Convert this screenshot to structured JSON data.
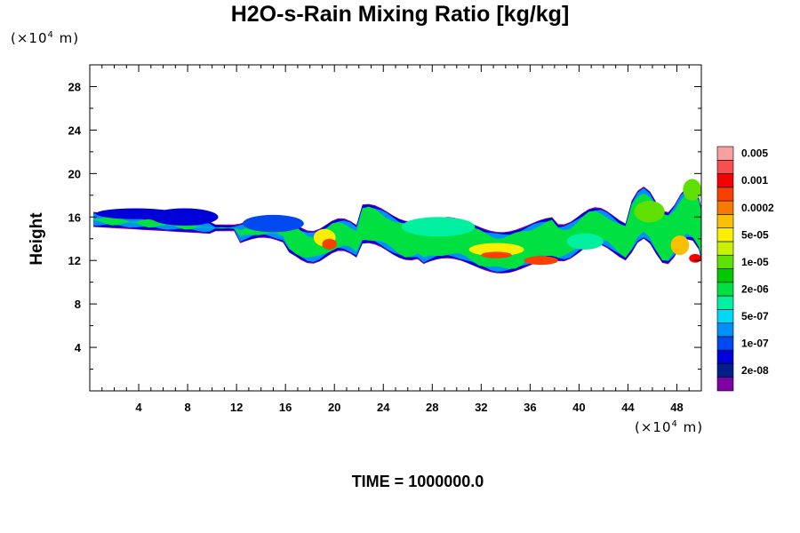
{
  "chart_data": {
    "type": "heatmap",
    "title": "H2O-s-Rain Mixing Ratio [kg/kg]",
    "xlabel": "",
    "ylabel": "Height",
    "x_units_prefix": "(×10",
    "x_units_exp": "4",
    "x_units_suffix": " m)",
    "y_units_prefix": "(×10",
    "y_units_exp": "4",
    "y_units_suffix": " m)",
    "xlim": [
      0,
      50
    ],
    "ylim": [
      0,
      30
    ],
    "x_ticks": [
      4,
      8,
      12,
      16,
      20,
      24,
      28,
      32,
      36,
      40,
      44,
      48
    ],
    "x_tick_labels": [
      "4",
      "8",
      "12",
      "16",
      "20",
      "24",
      "28",
      "32",
      "36",
      "40",
      "44",
      "48"
    ],
    "y_ticks": [
      4,
      8,
      12,
      16,
      20,
      24,
      28
    ],
    "y_tick_labels": [
      "4",
      "8",
      "12",
      "16",
      "20",
      "24",
      "28"
    ],
    "colorbar": {
      "colors": [
        "#7f00a0",
        "#001e8c",
        "#0000d8",
        "#0048f0",
        "#0090f8",
        "#00d8f8",
        "#00f0a0",
        "#00e040",
        "#00c800",
        "#60e000",
        "#c8f000",
        "#f8f000",
        "#f8c000",
        "#f87800",
        "#f84000",
        "#f80000",
        "#f85050",
        "#f8a0a0"
      ],
      "labels": [
        "2e-08",
        "1e-07",
        "5e-07",
        "2e-06",
        "1e-05",
        "5e-05",
        "0.0002",
        "0.001",
        "0.005"
      ]
    },
    "field_regions": [
      {
        "x": 0.5,
        "y": 15.8,
        "w": 6.5,
        "h": 1.0,
        "level": 2
      },
      {
        "x": 5.0,
        "y": 15.2,
        "w": 5.5,
        "h": 1.6,
        "level": 2
      },
      {
        "x": 12.5,
        "y": 14.6,
        "w": 5.0,
        "h": 1.6,
        "level": 3
      },
      {
        "x": 18.3,
        "y": 13.3,
        "w": 1.8,
        "h": 1.6,
        "level": 11
      },
      {
        "x": 19.0,
        "y": 13.0,
        "w": 1.2,
        "h": 1.0,
        "level": 14
      },
      {
        "x": 25.5,
        "y": 14.2,
        "w": 6.0,
        "h": 1.8,
        "level": 6
      },
      {
        "x": 31.0,
        "y": 12.4,
        "w": 4.5,
        "h": 1.2,
        "level": 11
      },
      {
        "x": 32.0,
        "y": 12.2,
        "w": 2.5,
        "h": 0.6,
        "level": 14
      },
      {
        "x": 35.5,
        "y": 11.6,
        "w": 2.8,
        "h": 0.8,
        "level": 14
      },
      {
        "x": 39.0,
        "y": 13.0,
        "w": 3.0,
        "h": 1.5,
        "level": 6
      },
      {
        "x": 44.5,
        "y": 15.5,
        "w": 2.5,
        "h": 2.0,
        "level": 9
      },
      {
        "x": 47.5,
        "y": 12.5,
        "w": 1.5,
        "h": 1.8,
        "level": 12
      },
      {
        "x": 49.0,
        "y": 11.8,
        "w": 1.0,
        "h": 0.8,
        "level": 15
      },
      {
        "x": 48.5,
        "y": 17.5,
        "w": 1.5,
        "h": 2.0,
        "level": 9
      }
    ],
    "time_label": "TIME = 1000000.0"
  }
}
